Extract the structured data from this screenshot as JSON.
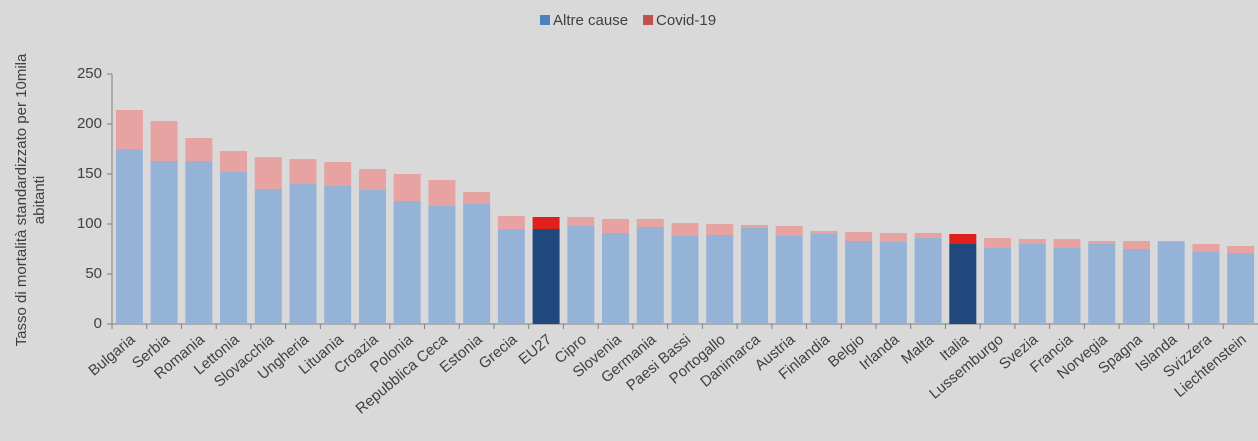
{
  "chart_data": {
    "type": "stacked_bar",
    "ylabel": [
      "Tasso di mortalità standardizzato per 10mila",
      "abitanti"
    ],
    "categories": [
      "Bulgaria",
      "Serbia",
      "Romania",
      "Lettonia",
      "Slovacchia",
      "Ungheria",
      "Lituania",
      "Croazia",
      "Polonia",
      "Repubblica Ceca",
      "Estonia",
      "Grecia",
      "EU27",
      "Cipro",
      "Slovenia",
      "Germania",
      "Paesi Bassi",
      "Portogallo",
      "Danimarca",
      "Austria",
      "Finlandia",
      "Belgio",
      "Irlanda",
      "Malta",
      "Italia",
      "Lussemburgo",
      "Svezia",
      "Francia",
      "Norvegia",
      "Spagna",
      "Islanda",
      "Svizzera",
      "Liechtenstein"
    ],
    "highlight_categories": [
      "EU27",
      "Italia"
    ],
    "series": [
      {
        "name": "Altre cause",
        "color": "#4f81bd",
        "light_color": "#95b3d7",
        "highlight_color": "#1f497d",
        "values": [
          175,
          163,
          163,
          152,
          135,
          140,
          138,
          134,
          123,
          118,
          120,
          95,
          95,
          98,
          91,
          97,
          88,
          89,
          96,
          88,
          90,
          83,
          82,
          86,
          80,
          76,
          80,
          76,
          80,
          75,
          82,
          72,
          71
        ]
      },
      {
        "name": "Covid-19",
        "color": "#c0504d",
        "light_color": "#e6a3a1",
        "highlight_color": "#e0201b",
        "values": [
          39,
          40,
          23,
          21,
          32,
          25,
          24,
          21,
          27,
          26,
          12,
          13,
          12,
          9,
          14,
          8,
          13,
          11,
          3,
          10,
          3,
          9,
          9,
          5,
          10,
          10,
          5,
          9,
          3,
          8,
          1,
          8,
          7
        ]
      }
    ],
    "ylim": [
      0,
      250
    ],
    "yticks": [
      0,
      50,
      100,
      150,
      200,
      250
    ],
    "grid": false,
    "legend": "top"
  }
}
